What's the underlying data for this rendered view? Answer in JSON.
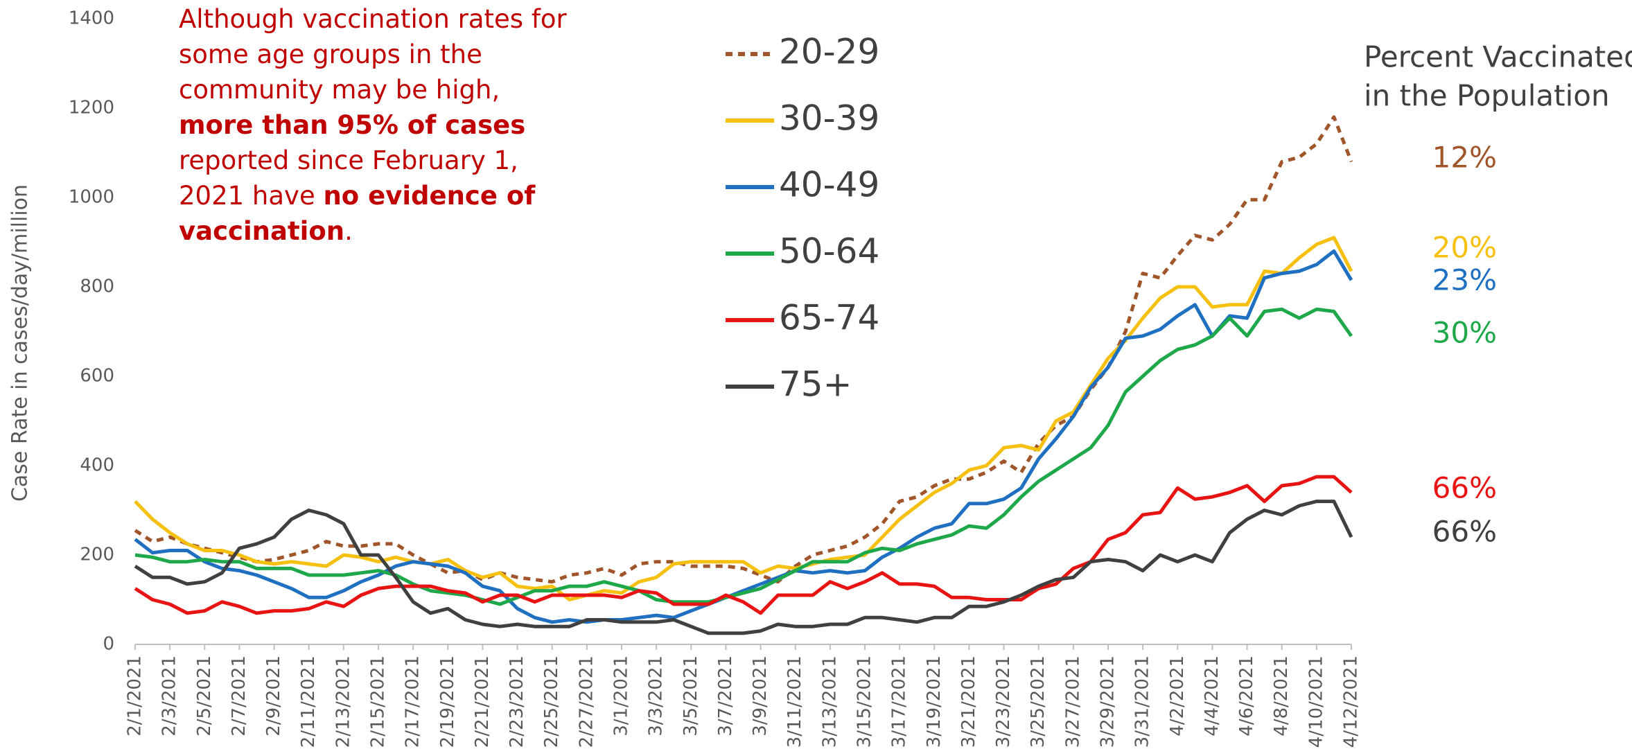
{
  "chart_data": {
    "type": "line",
    "y_label": "Case Rate in cases/day/million",
    "note": [
      {
        "text": "Although vaccination rates for some age groups in the community may be high, ",
        "bold": false
      },
      {
        "text": "more than 95% of cases",
        "bold": true
      },
      {
        "text": " reported since February 1, 2021 have ",
        "bold": false
      },
      {
        "text": "no evidence of vaccination",
        "bold": true
      },
      {
        "text": ".",
        "bold": false
      }
    ],
    "vaccinated_title": [
      "Percent Vaccinated",
      "in the Population"
    ],
    "categories": [
      "2/1/2021",
      null,
      "2/3/2021",
      null,
      "2/5/2021",
      null,
      "2/7/2021",
      null,
      "2/9/2021",
      null,
      "2/11/2021",
      null,
      "2/13/2021",
      null,
      "2/15/2021",
      null,
      "2/17/2021",
      null,
      "2/19/2021",
      null,
      "2/21/2021",
      null,
      "2/23/2021",
      null,
      "2/25/2021",
      null,
      "2/27/2021",
      null,
      "3/1/2021",
      null,
      "3/3/2021",
      null,
      "3/5/2021",
      null,
      "3/7/2021",
      null,
      "3/9/2021",
      null,
      "3/11/2021",
      null,
      "3/13/2021",
      null,
      "3/15/2021",
      null,
      "3/17/2021",
      null,
      "3/19/2021",
      null,
      "3/21/2021",
      null,
      "3/23/2021",
      null,
      "3/25/2021",
      null,
      "3/27/2021",
      null,
      "3/29/2021",
      null,
      "3/31/2021",
      null,
      "4/2/2021",
      null,
      "4/4/2021",
      null,
      "4/6/2021",
      null,
      "4/8/2021",
      null,
      "4/10/2021",
      null,
      "4/12/2021"
    ],
    "ylim": [
      0,
      1400
    ],
    "yticks": [
      0,
      200,
      400,
      600,
      800,
      1000,
      1200,
      1400
    ],
    "grid": false,
    "series": [
      {
        "name": "20-29",
        "color": "#a0562a",
        "dashed": true,
        "vaccinated": "12%",
        "values": [
          255,
          230,
          240,
          225,
          215,
          205,
          195,
          185,
          190,
          200,
          210,
          230,
          220,
          220,
          225,
          225,
          200,
          180,
          160,
          165,
          145,
          160,
          150,
          145,
          140,
          155,
          160,
          170,
          155,
          180,
          185,
          185,
          175,
          175,
          175,
          170,
          155,
          140,
          175,
          200,
          210,
          220,
          240,
          270,
          320,
          330,
          355,
          370,
          370,
          385,
          410,
          385,
          450,
          490,
          510,
          570,
          620,
          700,
          830,
          820,
          870,
          915,
          905,
          940,
          995,
          995,
          1080,
          1090,
          1120,
          1180,
          1080
        ]
      },
      {
        "name": "30-39",
        "color": "#f5c010",
        "dashed": false,
        "vaccinated": "20%",
        "values": [
          320,
          280,
          250,
          225,
          210,
          210,
          200,
          185,
          180,
          185,
          180,
          175,
          200,
          195,
          185,
          195,
          185,
          180,
          190,
          165,
          150,
          160,
          130,
          125,
          130,
          100,
          110,
          120,
          115,
          140,
          150,
          180,
          185,
          185,
          185,
          185,
          160,
          175,
          170,
          180,
          190,
          195,
          200,
          240,
          280,
          310,
          340,
          360,
          390,
          400,
          440,
          445,
          435,
          500,
          520,
          580,
          640,
          680,
          730,
          775,
          800,
          800,
          755,
          760,
          760,
          835,
          830,
          865,
          895,
          910,
          835
        ]
      },
      {
        "name": "40-49",
        "color": "#1f70c0",
        "dashed": false,
        "vaccinated": "23%",
        "values": [
          235,
          205,
          210,
          210,
          185,
          170,
          165,
          155,
          140,
          125,
          105,
          105,
          120,
          140,
          155,
          175,
          185,
          180,
          175,
          160,
          130,
          120,
          80,
          60,
          50,
          55,
          50,
          55,
          55,
          60,
          65,
          60,
          75,
          90,
          105,
          120,
          135,
          150,
          165,
          160,
          165,
          160,
          165,
          195,
          215,
          240,
          260,
          270,
          315,
          315,
          325,
          350,
          415,
          460,
          510,
          575,
          620,
          685,
          690,
          705,
          735,
          760,
          690,
          735,
          730,
          820,
          830,
          835,
          850,
          880,
          815
        ]
      },
      {
        "name": "50-64",
        "color": "#1ea84a",
        "dashed": false,
        "vaccinated": "30%",
        "values": [
          200,
          195,
          185,
          185,
          190,
          185,
          185,
          170,
          170,
          170,
          155,
          155,
          155,
          160,
          165,
          155,
          135,
          120,
          115,
          110,
          100,
          90,
          105,
          120,
          120,
          130,
          130,
          140,
          130,
          120,
          100,
          95,
          95,
          95,
          105,
          115,
          125,
          145,
          165,
          185,
          185,
          185,
          205,
          215,
          210,
          225,
          235,
          245,
          265,
          260,
          290,
          330,
          365,
          390,
          415,
          440,
          490,
          565,
          600,
          635,
          660,
          670,
          690,
          730,
          690,
          745,
          750,
          730,
          750,
          745,
          690
        ]
      },
      {
        "name": "65-74",
        "color": "#e81414",
        "dashed": false,
        "vaccinated": "66%",
        "values": [
          125,
          100,
          90,
          70,
          75,
          95,
          85,
          70,
          75,
          75,
          80,
          95,
          85,
          110,
          125,
          130,
          130,
          130,
          120,
          115,
          95,
          110,
          110,
          95,
          110,
          110,
          110,
          110,
          105,
          120,
          115,
          90,
          90,
          90,
          110,
          95,
          70,
          110,
          110,
          110,
          140,
          125,
          140,
          160,
          135,
          135,
          130,
          105,
          105,
          100,
          100,
          100,
          125,
          135,
          170,
          185,
          235,
          250,
          290,
          295,
          350,
          325,
          330,
          340,
          355,
          320,
          355,
          360,
          375,
          375,
          340
        ]
      },
      {
        "name": "75+",
        "color": "#404040",
        "dashed": false,
        "vaccinated": "66%",
        "values": [
          175,
          150,
          150,
          135,
          140,
          160,
          215,
          225,
          240,
          280,
          300,
          290,
          270,
          200,
          200,
          150,
          95,
          70,
          80,
          55,
          45,
          40,
          45,
          40,
          40,
          40,
          55,
          55,
          50,
          50,
          50,
          55,
          40,
          25,
          25,
          25,
          30,
          45,
          40,
          40,
          45,
          45,
          60,
          60,
          55,
          50,
          60,
          60,
          85,
          85,
          95,
          110,
          130,
          145,
          150,
          185,
          190,
          185,
          165,
          200,
          185,
          200,
          185,
          250,
          280,
          300,
          290,
          310,
          320,
          320,
          240
        ]
      }
    ]
  }
}
